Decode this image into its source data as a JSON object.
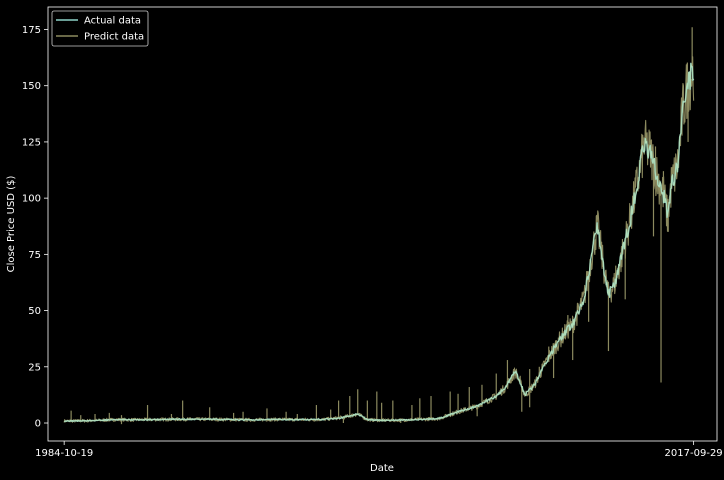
{
  "chart_data": {
    "type": "line",
    "xlabel": "Date",
    "ylabel": "Close Price USD ($)",
    "x_ticks": [
      {
        "date": "1984-10-19",
        "label": "1984-10-19"
      },
      {
        "date": "2017-09-29",
        "label": "2017-09-29"
      }
    ],
    "x_range": [
      "1983-12-15",
      "2018-12-20"
    ],
    "ylim": [
      -8,
      185
    ],
    "y_ticks": [
      0,
      25,
      50,
      75,
      100,
      125,
      150,
      175
    ],
    "grid": false,
    "legend": {
      "placement": "top-left"
    },
    "background": "#000000",
    "series": [
      {
        "name": "Actual data",
        "color": "#8dd3c7",
        "points": [
          [
            "1984-10-19",
            0.9
          ],
          [
            "1986-01-01",
            1.0
          ],
          [
            "1987-06-01",
            1.5
          ],
          [
            "1988-06-01",
            1.4
          ],
          [
            "1990-01-01",
            1.6
          ],
          [
            "1991-06-01",
            1.7
          ],
          [
            "1993-01-01",
            1.6
          ],
          [
            "1994-06-01",
            1.4
          ],
          [
            "1996-01-01",
            1.6
          ],
          [
            "1997-06-01",
            1.5
          ],
          [
            "1998-06-01",
            1.6
          ],
          [
            "1999-06-01",
            2.5
          ],
          [
            "2000-03-01",
            4.0
          ],
          [
            "2000-09-01",
            1.5
          ],
          [
            "2001-06-01",
            1.2
          ],
          [
            "2002-06-01",
            1.3
          ],
          [
            "2003-06-01",
            1.6
          ],
          [
            "2004-06-01",
            2.0
          ],
          [
            "2005-06-01",
            5.0
          ],
          [
            "2006-06-01",
            7.5
          ],
          [
            "2007-06-01",
            12.0
          ],
          [
            "2007-12-01",
            16.0
          ],
          [
            "2008-06-01",
            23.0
          ],
          [
            "2008-12-01",
            12.5
          ],
          [
            "2009-06-01",
            17.0
          ],
          [
            "2010-01-01",
            27.0
          ],
          [
            "2010-06-01",
            33.0
          ],
          [
            "2011-01-01",
            40.0
          ],
          [
            "2011-06-01",
            44.0
          ],
          [
            "2012-01-01",
            55.0
          ],
          [
            "2012-06-01",
            75.0
          ],
          [
            "2012-09-15",
            88.0
          ],
          [
            "2013-01-01",
            71.0
          ],
          [
            "2013-04-15",
            57.0
          ],
          [
            "2013-09-01",
            63.0
          ],
          [
            "2014-01-01",
            75.0
          ],
          [
            "2014-06-01",
            90.0
          ],
          [
            "2014-12-01",
            112.0
          ],
          [
            "2015-03-01",
            124.0
          ],
          [
            "2015-07-01",
            120.0
          ],
          [
            "2015-10-01",
            112.0
          ],
          [
            "2016-03-01",
            102.0
          ],
          [
            "2016-05-15",
            92.0
          ],
          [
            "2016-08-01",
            106.0
          ],
          [
            "2016-12-01",
            115.0
          ],
          [
            "2017-03-01",
            138.0
          ],
          [
            "2017-06-01",
            150.0
          ],
          [
            "2017-09-29",
            158.0
          ]
        ]
      },
      {
        "name": "Predict data",
        "color": "#8c8a5f",
        "points": [
          [
            "1984-10-19",
            0.9
          ],
          [
            "1986-01-01",
            1.0
          ],
          [
            "1987-06-01",
            1.5
          ],
          [
            "1988-06-01",
            1.4
          ],
          [
            "1990-01-01",
            1.6
          ],
          [
            "1991-06-01",
            1.7
          ],
          [
            "1993-01-01",
            1.6
          ],
          [
            "1994-06-01",
            1.4
          ],
          [
            "1996-01-01",
            1.6
          ],
          [
            "1997-06-01",
            1.5
          ],
          [
            "1998-06-01",
            1.6
          ],
          [
            "1999-06-01",
            2.5
          ],
          [
            "2000-03-01",
            4.0
          ],
          [
            "2000-09-01",
            1.5
          ],
          [
            "2001-06-01",
            1.2
          ],
          [
            "2002-06-01",
            1.3
          ],
          [
            "2003-06-01",
            1.6
          ],
          [
            "2004-06-01",
            2.0
          ],
          [
            "2005-06-01",
            5.0
          ],
          [
            "2006-06-01",
            7.5
          ],
          [
            "2007-06-01",
            12.0
          ],
          [
            "2007-12-01",
            16.0
          ],
          [
            "2008-06-01",
            23.0
          ],
          [
            "2008-12-01",
            12.5
          ],
          [
            "2009-06-01",
            17.0
          ],
          [
            "2010-01-01",
            27.0
          ],
          [
            "2010-06-01",
            33.0
          ],
          [
            "2011-01-01",
            40.0
          ],
          [
            "2011-06-01",
            44.0
          ],
          [
            "2012-01-01",
            55.0
          ],
          [
            "2012-06-01",
            75.0
          ],
          [
            "2012-09-15",
            88.0
          ],
          [
            "2013-01-01",
            71.0
          ],
          [
            "2013-04-15",
            57.0
          ],
          [
            "2013-09-01",
            63.0
          ],
          [
            "2014-01-01",
            75.0
          ],
          [
            "2014-06-01",
            90.0
          ],
          [
            "2014-12-01",
            112.0
          ],
          [
            "2015-03-01",
            124.0
          ],
          [
            "2015-07-01",
            120.0
          ],
          [
            "2015-10-01",
            112.0
          ],
          [
            "2016-03-01",
            102.0
          ],
          [
            "2016-05-15",
            92.0
          ],
          [
            "2016-08-01",
            106.0
          ],
          [
            "2016-12-01",
            115.0
          ],
          [
            "2017-03-01",
            138.0
          ],
          [
            "2017-06-01",
            150.0
          ],
          [
            "2017-09-29",
            158.0
          ]
        ],
        "spikes": [
          [
            "1985-03-01",
            5.5
          ],
          [
            "1985-09-01",
            3.5
          ],
          [
            "1986-06-01",
            4.0
          ],
          [
            "1987-03-01",
            4.5
          ],
          [
            "1987-10-20",
            3.5
          ],
          [
            "1989-03-01",
            8.0
          ],
          [
            "1990-06-01",
            4.0
          ],
          [
            "1991-01-01",
            10.0
          ],
          [
            "1992-06-01",
            7.0
          ],
          [
            "1993-09-01",
            4.5
          ],
          [
            "1994-03-01",
            5.0
          ],
          [
            "1995-06-01",
            6.5
          ],
          [
            "1996-06-01",
            5.0
          ],
          [
            "1997-01-01",
            4.0
          ],
          [
            "1998-01-01",
            8.0
          ],
          [
            "1998-10-01",
            6.0
          ],
          [
            "1999-03-01",
            10.0
          ],
          [
            "1999-10-01",
            12.0
          ],
          [
            "2000-03-01",
            15.0
          ],
          [
            "2000-09-01",
            10.0
          ],
          [
            "2001-03-01",
            14.0
          ],
          [
            "2001-06-01",
            9.0
          ],
          [
            "2002-01-01",
            10.0
          ],
          [
            "2003-01-01",
            8.0
          ],
          [
            "2003-06-01",
            11.0
          ],
          [
            "2004-01-01",
            12.0
          ],
          [
            "2005-01-01",
            14.0
          ],
          [
            "2005-06-01",
            13.0
          ],
          [
            "2006-01-01",
            16.0
          ],
          [
            "2006-09-01",
            17.0
          ],
          [
            "2007-06-01",
            22.0
          ],
          [
            "2008-01-01",
            28.0
          ],
          [
            "2008-09-01",
            21.0
          ],
          [
            "2009-03-01",
            24.0
          ],
          [
            "2009-09-01",
            25.0
          ],
          [
            "2010-03-01",
            34.0
          ],
          [
            "2010-09-01",
            38.0
          ],
          [
            "2011-03-01",
            48.0
          ],
          [
            "2011-09-01",
            52.0
          ],
          [
            "2012-03-01",
            65.0
          ],
          [
            "2012-09-01",
            90.0
          ],
          [
            "2013-03-01",
            66.0
          ],
          [
            "2013-09-01",
            70.0
          ],
          [
            "2014-03-01",
            82.0
          ],
          [
            "2014-09-01",
            103.0
          ],
          [
            "2015-03-01",
            127.0
          ],
          [
            "2015-06-01",
            125.0
          ],
          [
            "2015-10-01",
            123.0
          ],
          [
            "2016-03-01",
            112.0
          ],
          [
            "2016-09-01",
            115.0
          ],
          [
            "2017-03-01",
            145.0
          ],
          [
            "2017-06-01",
            160.0
          ],
          [
            "2017-09-01",
            176.0
          ]
        ],
        "dips": [
          [
            "1987-10-20",
            -0.5
          ],
          [
            "1999-06-01",
            0.0
          ],
          [
            "2002-06-01",
            0.0
          ],
          [
            "2006-06-01",
            3.0
          ],
          [
            "2008-10-01",
            5.0
          ],
          [
            "2009-03-01",
            7.0
          ],
          [
            "2010-06-01",
            20.0
          ],
          [
            "2011-06-01",
            28.0
          ],
          [
            "2012-04-01",
            45.0
          ],
          [
            "2013-04-15",
            32.0
          ],
          [
            "2014-03-01",
            55.0
          ],
          [
            "2015-08-24",
            83.0
          ],
          [
            "2016-01-15",
            18.0
          ],
          [
            "2016-06-01",
            85.0
          ],
          [
            "2017-06-15",
            125.0
          ]
        ]
      }
    ]
  }
}
